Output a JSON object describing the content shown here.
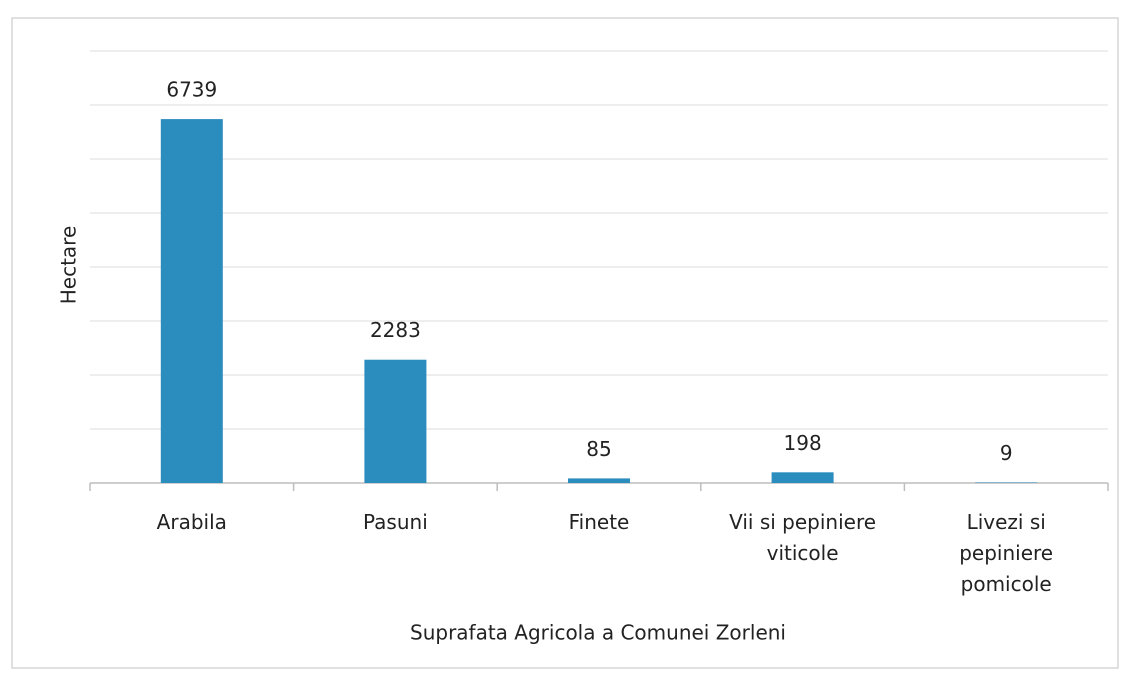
{
  "chart_data": {
    "type": "bar",
    "x_label": "Suprafata Agricola a Comunei Zorleni",
    "y_label": "Hectare",
    "categories": [
      "Arabila",
      "Pasuni",
      "Finete",
      "Vii si pepiniere viticole",
      "Livezi si pepiniere pomicole"
    ],
    "values": [
      6739,
      2283,
      85,
      198,
      9
    ],
    "color": "#2b8cbe",
    "ylim": [
      0,
      8000
    ],
    "yticks": [
      0,
      1000,
      2000,
      3000,
      4000,
      5000,
      6000,
      7000,
      8000
    ],
    "grid": true
  }
}
